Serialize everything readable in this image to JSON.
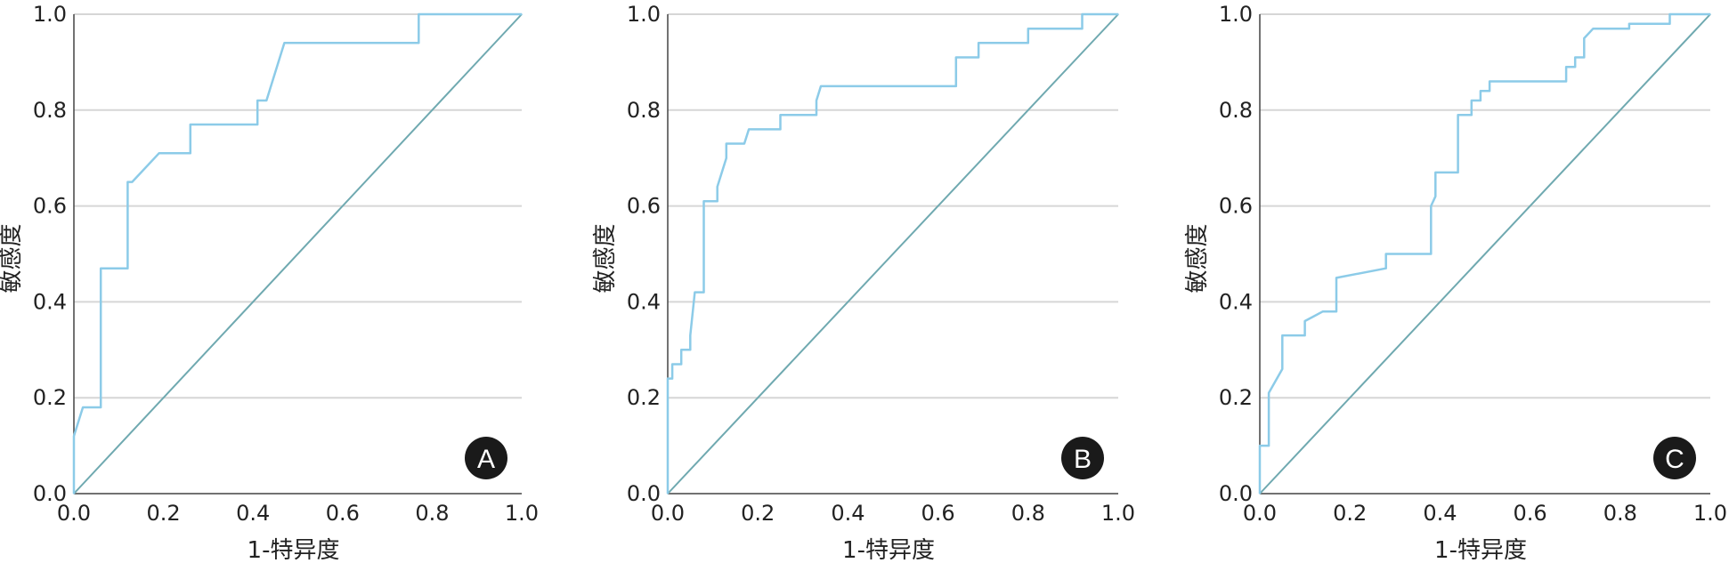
{
  "chart_data": [
    {
      "type": "line",
      "panel_label": "A",
      "xlabel": "1-特异度",
      "ylabel": "敏感度",
      "xlim": [
        0,
        1
      ],
      "ylim": [
        0,
        1
      ],
      "x_ticks": [
        "0.0",
        "0.2",
        "0.4",
        "0.6",
        "0.8",
        "1.0"
      ],
      "y_ticks": [
        "0.0",
        "0.2",
        "0.4",
        "0.6",
        "0.8",
        "1.0"
      ],
      "grid": "horizontal",
      "reference_line": [
        [
          0,
          0
        ],
        [
          1,
          1
        ]
      ],
      "series": [
        {
          "color": "#8ccbe8",
          "points": [
            [
              0,
              0
            ],
            [
              0,
              0.12
            ],
            [
              0.02,
              0.18
            ],
            [
              0.06,
              0.18
            ],
            [
              0.06,
              0.47
            ],
            [
              0.12,
              0.47
            ],
            [
              0.12,
              0.65
            ],
            [
              0.13,
              0.65
            ],
            [
              0.19,
              0.71
            ],
            [
              0.26,
              0.71
            ],
            [
              0.26,
              0.77
            ],
            [
              0.41,
              0.77
            ],
            [
              0.41,
              0.82
            ],
            [
              0.43,
              0.82
            ],
            [
              0.47,
              0.94
            ],
            [
              0.77,
              0.94
            ],
            [
              0.77,
              1.0
            ],
            [
              1.0,
              1.0
            ]
          ]
        }
      ]
    },
    {
      "type": "line",
      "panel_label": "B",
      "xlabel": "1-特异度",
      "ylabel": "敏感度",
      "xlim": [
        0,
        1
      ],
      "ylim": [
        0,
        1
      ],
      "x_ticks": [
        "0.0",
        "0.2",
        "0.4",
        "0.6",
        "0.8",
        "1.0"
      ],
      "y_ticks": [
        "0.0",
        "0.2",
        "0.4",
        "0.6",
        "0.8",
        "1.0"
      ],
      "grid": "horizontal",
      "reference_line": [
        [
          0,
          0
        ],
        [
          1,
          1
        ]
      ],
      "series": [
        {
          "color": "#8ccbe8",
          "points": [
            [
              0,
              0
            ],
            [
              0,
              0.24
            ],
            [
              0.01,
              0.24
            ],
            [
              0.01,
              0.27
            ],
            [
              0.03,
              0.27
            ],
            [
              0.03,
              0.3
            ],
            [
              0.05,
              0.3
            ],
            [
              0.05,
              0.33
            ],
            [
              0.06,
              0.42
            ],
            [
              0.08,
              0.42
            ],
            [
              0.08,
              0.61
            ],
            [
              0.11,
              0.61
            ],
            [
              0.11,
              0.64
            ],
            [
              0.13,
              0.7
            ],
            [
              0.13,
              0.73
            ],
            [
              0.17,
              0.73
            ],
            [
              0.18,
              0.76
            ],
            [
              0.25,
              0.76
            ],
            [
              0.25,
              0.79
            ],
            [
              0.33,
              0.79
            ],
            [
              0.33,
              0.82
            ],
            [
              0.34,
              0.85
            ],
            [
              0.64,
              0.85
            ],
            [
              0.64,
              0.91
            ],
            [
              0.69,
              0.91
            ],
            [
              0.69,
              0.94
            ],
            [
              0.8,
              0.94
            ],
            [
              0.8,
              0.97
            ],
            [
              0.92,
              0.97
            ],
            [
              0.92,
              1.0
            ],
            [
              1.0,
              1.0
            ]
          ]
        }
      ]
    },
    {
      "type": "line",
      "panel_label": "C",
      "xlabel": "1-特异度",
      "ylabel": "敏感度",
      "xlim": [
        0,
        1
      ],
      "ylim": [
        0,
        1
      ],
      "x_ticks": [
        "0.0",
        "0.2",
        "0.4",
        "0.6",
        "0.8",
        "1.0"
      ],
      "y_ticks": [
        "0.0",
        "0.2",
        "0.4",
        "0.6",
        "0.8",
        "1.0"
      ],
      "grid": "horizontal",
      "reference_line": [
        [
          0,
          0
        ],
        [
          1,
          1
        ]
      ],
      "series": [
        {
          "color": "#8ccbe8",
          "points": [
            [
              0,
              0
            ],
            [
              0,
              0.1
            ],
            [
              0.02,
              0.1
            ],
            [
              0.02,
              0.21
            ],
            [
              0.05,
              0.26
            ],
            [
              0.05,
              0.33
            ],
            [
              0.1,
              0.33
            ],
            [
              0.1,
              0.36
            ],
            [
              0.12,
              0.37
            ],
            [
              0.14,
              0.38
            ],
            [
              0.17,
              0.38
            ],
            [
              0.17,
              0.45
            ],
            [
              0.28,
              0.47
            ],
            [
              0.28,
              0.5
            ],
            [
              0.38,
              0.5
            ],
            [
              0.38,
              0.6
            ],
            [
              0.39,
              0.62
            ],
            [
              0.39,
              0.67
            ],
            [
              0.44,
              0.67
            ],
            [
              0.44,
              0.79
            ],
            [
              0.47,
              0.79
            ],
            [
              0.47,
              0.82
            ],
            [
              0.49,
              0.82
            ],
            [
              0.49,
              0.84
            ],
            [
              0.51,
              0.84
            ],
            [
              0.51,
              0.86
            ],
            [
              0.68,
              0.86
            ],
            [
              0.68,
              0.89
            ],
            [
              0.7,
              0.89
            ],
            [
              0.7,
              0.91
            ],
            [
              0.72,
              0.91
            ],
            [
              0.72,
              0.95
            ],
            [
              0.74,
              0.97
            ],
            [
              0.82,
              0.97
            ],
            [
              0.82,
              0.98
            ],
            [
              0.91,
              0.98
            ],
            [
              0.91,
              1.0
            ],
            [
              1.0,
              1.0
            ]
          ]
        }
      ]
    }
  ],
  "colors": {
    "roc_curve": "#8ccbe8",
    "reference_line": "#6fa9b0",
    "grid": "#d6d6d6",
    "axis": "#444444",
    "badge_fill": "#1a1a1a",
    "badge_text": "#ffffff"
  }
}
